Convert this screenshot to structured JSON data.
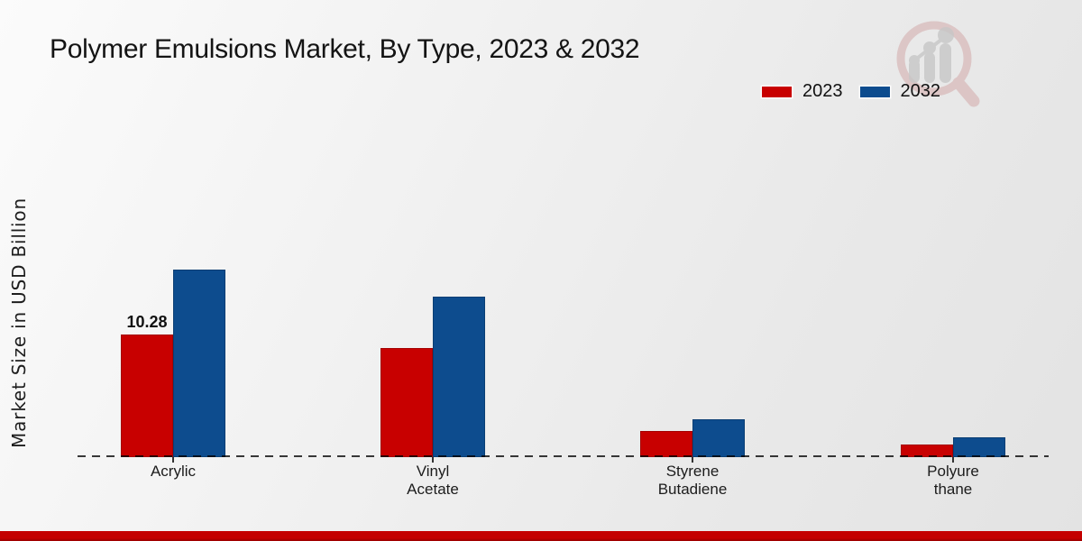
{
  "title": "Polymer Emulsions Market, By Type, 2023 & 2032",
  "y_axis_label": "Market Size in USD Billion",
  "legend": {
    "position": "top-right",
    "items": [
      {
        "label": "2023",
        "color": "#c80000"
      },
      {
        "label": "2032",
        "color": "#0d4c8e"
      }
    ]
  },
  "accent_bar_color": "#c40000",
  "watermark_icon": "magnifier-bar-chart-logo",
  "chart_data": {
    "type": "bar",
    "title": "Polymer Emulsions Market, By Type, 2023 & 2032",
    "xlabel": "",
    "ylabel": "Market Size in USD Billion",
    "categories": [
      "Acrylic",
      "Vinyl Acetate",
      "Styrene Butadiene",
      "Polyurethane"
    ],
    "category_label_lines": [
      [
        "Acrylic"
      ],
      [
        "Vinyl",
        "Acetate"
      ],
      [
        "Styrene",
        "Butadiene"
      ],
      [
        "Polyure",
        "thane"
      ]
    ],
    "series": [
      {
        "name": "2023",
        "color": "#c80000",
        "values": [
          10.28,
          9.17,
          2.22,
          1.09
        ]
      },
      {
        "name": "2032",
        "color": "#0d4c8e",
        "values": [
          15.79,
          13.52,
          3.16,
          1.67
        ]
      }
    ],
    "annotations": [
      {
        "series": "2023",
        "category": "Acrylic",
        "category_index": 0,
        "text": "10.28"
      }
    ],
    "ylim": [
      0,
      17
    ],
    "grid": false,
    "baseline_style": "dashed",
    "legend_position": "top-right"
  }
}
